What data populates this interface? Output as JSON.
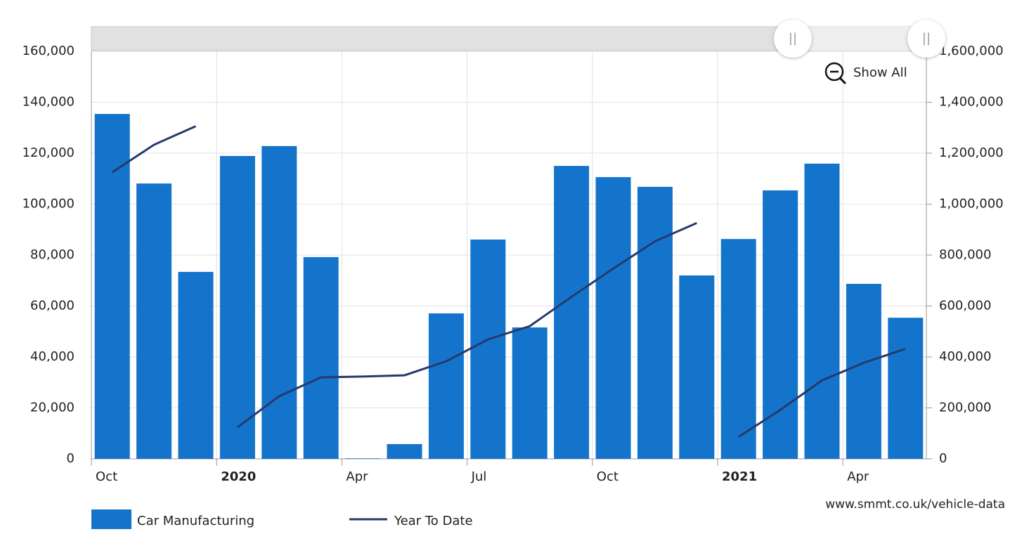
{
  "chart_data": {
    "type": "bar",
    "categories": [
      "Oct",
      null,
      null,
      "2020",
      null,
      null,
      "Apr",
      null,
      null,
      "Jul",
      null,
      null,
      "Oct",
      null,
      null,
      "2021",
      null,
      null,
      "Apr",
      null
    ],
    "series": [
      {
        "name": "Car Manufacturing",
        "color": "#1474cb",
        "type": "bar",
        "values": [
          135400,
          108100,
          73400,
          118900,
          122800,
          79200,
          200,
          5800,
          57100,
          86100,
          51600,
          115000,
          110600,
          106800,
          72000,
          86300,
          105400,
          115900,
          68700,
          55400
        ]
      },
      {
        "name": "Year To Date",
        "color": "#263a6b",
        "type": "line",
        "axis": "y2",
        "values": [
          1125000,
          1233000,
          1306000,
          124000,
          246000,
          320000,
          323000,
          328000,
          383000,
          469000,
          521000,
          636000,
          747000,
          854000,
          926000,
          86000,
          192000,
          308000,
          377000,
          432000
        ]
      }
    ],
    "ylim": [
      0,
      160000
    ],
    "yticks": [
      0,
      {
        "value": 20000,
        "label": "20,000"
      },
      {
        "value": 40000,
        "label": "40,000"
      },
      {
        "value": 60000,
        "label": "60,000"
      },
      {
        "value": 80000,
        "label": "80,000"
      },
      {
        "value": 100000,
        "label": "100,000"
      },
      {
        "value": 120000,
        "label": "120,000"
      },
      {
        "value": 140000,
        "label": "140,000"
      },
      {
        "value": 160000,
        "label": "160,000"
      }
    ],
    "y2lim": [
      0,
      1600000
    ],
    "y2ticks": [
      0,
      {
        "value": 200000,
        "label": "200,000"
      },
      {
        "value": 400000,
        "label": "400,000"
      },
      {
        "value": 600000,
        "label": "600,000"
      },
      {
        "value": 800000,
        "label": "800,000"
      },
      {
        "value": 1000000,
        "label": "1,000,000"
      },
      {
        "value": 1200000,
        "label": "1,200,000"
      },
      {
        "value": 1400000,
        "label": "1,400,000"
      },
      {
        "value": 1600000,
        "label": "1,600,000"
      }
    ],
    "grid": true,
    "zoom_button": "Show All",
    "source": "www.smmt.co.uk/vehicle-data"
  }
}
